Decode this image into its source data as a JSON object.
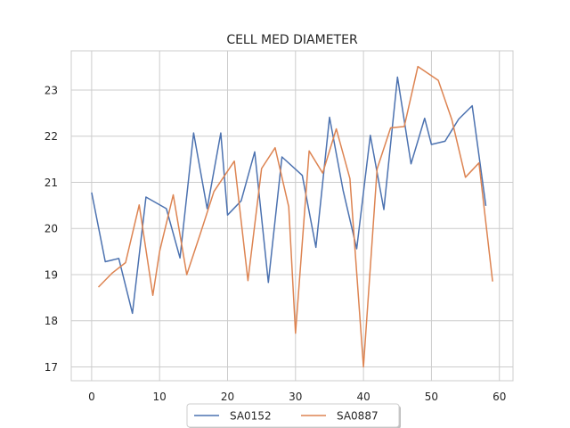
{
  "chart_data": {
    "type": "line",
    "title": "CELL MED DIAMETER",
    "xlabel": "",
    "ylabel": "",
    "xlim": [
      -3,
      62
    ],
    "ylim": [
      16.7,
      23.85
    ],
    "xticks": [
      0,
      10,
      20,
      30,
      40,
      50,
      60
    ],
    "yticks": [
      17,
      18,
      19,
      20,
      21,
      22,
      23
    ],
    "grid": true,
    "legend_position": "bottom-center",
    "series": [
      {
        "name": "SA0152",
        "color": "#4c72b0",
        "x": [
          0,
          2,
          4,
          6,
          8,
          11,
          13,
          15,
          17,
          19,
          20,
          22,
          24,
          26,
          28,
          31,
          33,
          35,
          37,
          39,
          41,
          43,
          45,
          47,
          49,
          50,
          52,
          54,
          56,
          58
        ],
        "y": [
          20.78,
          19.28,
          19.35,
          18.16,
          20.68,
          20.43,
          19.36,
          22.07,
          20.43,
          22.07,
          20.29,
          20.6,
          21.66,
          18.83,
          21.55,
          21.15,
          19.59,
          22.41,
          20.83,
          19.56,
          22.02,
          20.41,
          23.28,
          21.4,
          22.39,
          21.82,
          21.89,
          22.37,
          22.66,
          20.49
        ]
      },
      {
        "name": "SA0887",
        "color": "#dd8452",
        "x": [
          1,
          3,
          5,
          7,
          9,
          10,
          12,
          14,
          16,
          18,
          21,
          23,
          25,
          27,
          29,
          30,
          32,
          34,
          36,
          38,
          40,
          42,
          44,
          46,
          48,
          51,
          53,
          55,
          57,
          59
        ],
        "y": [
          18.73,
          19.03,
          19.26,
          20.51,
          18.55,
          19.5,
          20.73,
          19.0,
          19.89,
          20.8,
          21.46,
          18.87,
          21.3,
          21.75,
          20.47,
          17.73,
          21.68,
          21.2,
          22.16,
          21.08,
          17.0,
          21.29,
          22.18,
          22.21,
          23.51,
          23.21,
          22.36,
          21.11,
          21.42,
          18.85
        ]
      }
    ]
  }
}
